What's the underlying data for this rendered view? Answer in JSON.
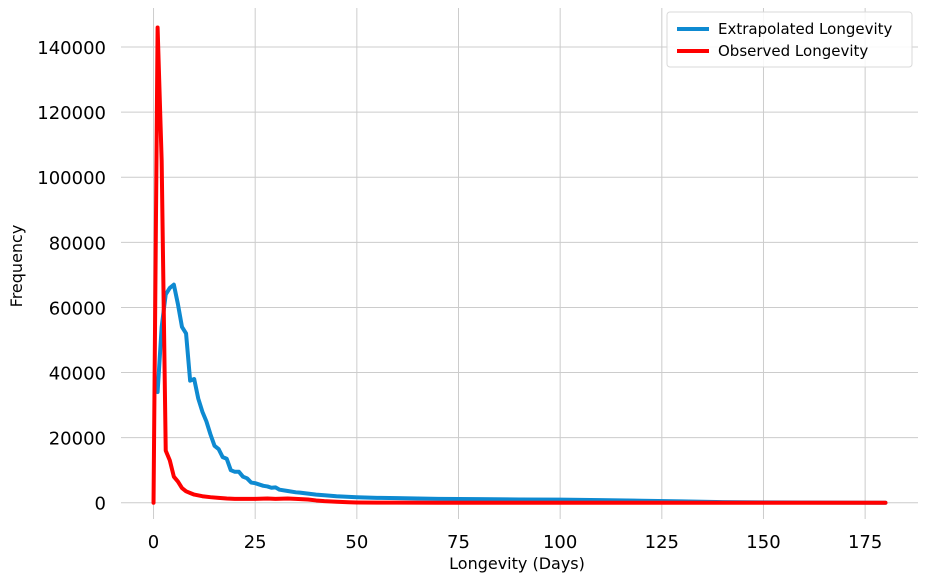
{
  "chart_data": {
    "type": "line",
    "title": "",
    "xlabel": "Longevity (Days)",
    "ylabel": "Frequency",
    "xlim": [
      -8,
      188
    ],
    "ylim": [
      -5000,
      152000
    ],
    "x_ticks": [
      0,
      25,
      50,
      75,
      100,
      125,
      150,
      175
    ],
    "y_ticks": [
      0,
      20000,
      40000,
      60000,
      80000,
      100000,
      120000,
      140000
    ],
    "grid": true,
    "legend_position": "top-right",
    "series": [
      {
        "name": "Extrapolated Longevity",
        "color": "#0e8ad1",
        "x": [
          1,
          2,
          3,
          4,
          5,
          6,
          7,
          8,
          9,
          10,
          11,
          12,
          13,
          14,
          15,
          16,
          17,
          18,
          19,
          20,
          21,
          22,
          23,
          24,
          25,
          27,
          28,
          29,
          30,
          31,
          33,
          35,
          36,
          38,
          40,
          42,
          45,
          50,
          55,
          60,
          70,
          80,
          90,
          100,
          110,
          120,
          130,
          140,
          150,
          160,
          170,
          180
        ],
        "y": [
          34000,
          54000,
          64000,
          66000,
          67000,
          61000,
          54000,
          52000,
          37500,
          38000,
          32000,
          28000,
          25000,
          21000,
          17500,
          16500,
          14000,
          13500,
          10000,
          9500,
          9500,
          8000,
          7500,
          6200,
          6000,
          5200,
          5000,
          4600,
          4700,
          4000,
          3600,
          3200,
          3100,
          2800,
          2500,
          2300,
          2000,
          1700,
          1500,
          1400,
          1200,
          1100,
          1000,
          950,
          800,
          600,
          400,
          200,
          100,
          50,
          20,
          0
        ]
      },
      {
        "name": "Observed Longevity",
        "color": "#ff0000",
        "x": [
          0,
          1,
          2,
          3,
          4,
          5,
          6,
          7,
          8,
          9,
          10,
          12,
          14,
          16,
          18,
          20,
          22,
          25,
          28,
          30,
          33,
          35,
          38,
          40,
          42,
          45,
          48,
          50,
          55,
          60,
          70,
          80,
          100,
          120,
          140,
          160,
          180
        ],
        "y": [
          0,
          146000,
          105000,
          16000,
          13000,
          8000,
          6500,
          4500,
          3500,
          3000,
          2500,
          2000,
          1700,
          1500,
          1300,
          1200,
          1200,
          1200,
          1300,
          1200,
          1300,
          1200,
          1000,
          700,
          500,
          300,
          150,
          80,
          40,
          20,
          10,
          5,
          5,
          5,
          5,
          5,
          5
        ]
      }
    ]
  }
}
